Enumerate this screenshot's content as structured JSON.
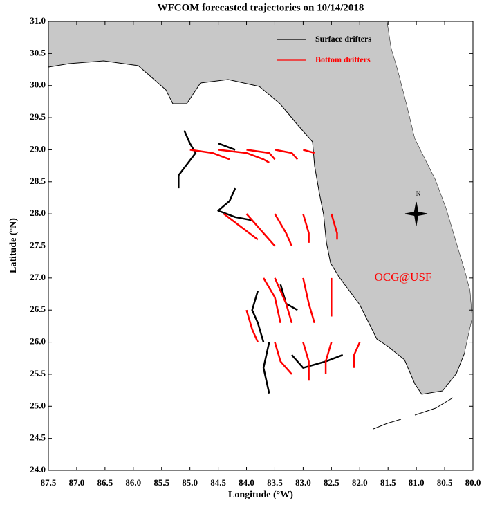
{
  "chart_data": {
    "type": "map",
    "title": "WFCOM forecasted trajectories on 10/14/2018",
    "x_label": "Longitude (°W)",
    "y_label": "Latitude (°N)",
    "annotation": "OCG@USF",
    "compass_label": "N",
    "xlim": [
      87.5,
      80.0
    ],
    "ylim": [
      24.0,
      31.0
    ],
    "xticks": [
      87.5,
      {
        "value": 87.0,
        "label": "87.0"
      },
      86.5,
      {
        "value": 86.0,
        "label": "86.0"
      },
      85.5,
      {
        "value": 85.0,
        "label": "85.0"
      },
      84.5,
      {
        "value": 84.0,
        "label": "84.0"
      },
      83.5,
      {
        "value": 83.0,
        "label": "83.0"
      },
      82.5,
      {
        "value": 82.0,
        "label": "82.0"
      },
      81.5,
      {
        "value": 81.0,
        "label": "81.0"
      },
      80.5,
      {
        "value": 80.0,
        "label": "80.0"
      }
    ],
    "yticks": [
      {
        "value": 24.0,
        "label": "24.0"
      },
      24.5,
      {
        "value": 25.0,
        "label": "25.0"
      },
      25.5,
      {
        "value": 26.0,
        "label": "26.0"
      },
      26.5,
      {
        "value": 27.0,
        "label": "27.0"
      },
      27.5,
      {
        "value": 28.0,
        "label": "28.0"
      },
      28.5,
      {
        "value": 29.0,
        "label": "29.0"
      },
      29.5,
      {
        "value": 30.0,
        "label": "30.0"
      },
      30.5,
      {
        "value": 31.0,
        "label": "31.0"
      }
    ],
    "series": [
      {
        "name": "Surface drifters",
        "color": "#000000",
        "x": [
          85.1,
          85.0,
          84.9,
          85.2,
          85.2,
          null,
          84.2,
          84.3,
          84.5,
          84.2,
          83.9,
          null,
          83.8,
          83.9,
          83.8,
          83.7,
          null,
          83.6,
          83.7,
          83.6,
          null,
          83.2,
          83.0,
          82.6,
          82.3,
          null,
          83.4,
          83.3,
          83.1,
          null,
          84.5,
          84.2
        ],
        "y": [
          29.3,
          29.1,
          28.95,
          28.6,
          28.4,
          null,
          28.4,
          28.2,
          28.05,
          27.95,
          27.9,
          null,
          26.8,
          26.5,
          26.3,
          26.0,
          null,
          26.0,
          25.6,
          25.2,
          null,
          25.8,
          25.6,
          25.7,
          25.8,
          null,
          26.9,
          26.6,
          26.5,
          null,
          29.1,
          29.0
        ]
      },
      {
        "name": "Bottom drifters",
        "color": "#ff0000",
        "x": [
          85.0,
          84.6,
          84.3,
          null,
          84.5,
          84.0,
          83.7,
          83.6,
          null,
          84.0,
          83.6,
          83.5,
          null,
          83.5,
          83.2,
          83.1,
          null,
          83.0,
          82.8,
          null,
          84.4,
          84.1,
          83.8,
          null,
          84.0,
          83.7,
          83.5,
          null,
          83.5,
          83.3,
          83.2,
          null,
          83.0,
          82.9,
          82.9,
          null,
          82.5,
          82.4,
          82.4,
          null,
          83.7,
          83.5,
          83.4,
          null,
          83.5,
          83.3,
          83.2,
          null,
          83.0,
          82.9,
          82.8,
          null,
          82.5,
          82.5,
          82.5,
          null,
          84.0,
          83.9,
          83.8,
          null,
          83.5,
          83.4,
          83.2,
          null,
          83.0,
          82.9,
          82.9,
          null,
          82.5,
          82.6,
          82.6,
          null,
          82.0,
          82.1,
          82.1
        ],
        "y": [
          29.0,
          28.95,
          28.85,
          null,
          29.0,
          28.95,
          28.85,
          28.8,
          null,
          29.0,
          28.95,
          28.85,
          null,
          29.0,
          28.95,
          28.85,
          null,
          29.0,
          28.95,
          null,
          28.0,
          27.8,
          27.6,
          null,
          28.0,
          27.7,
          27.5,
          null,
          28.0,
          27.7,
          27.5,
          null,
          28.0,
          27.7,
          27.55,
          null,
          28.0,
          27.7,
          27.6,
          null,
          27.0,
          26.7,
          26.3,
          null,
          27.0,
          26.6,
          26.3,
          null,
          27.0,
          26.6,
          26.3,
          null,
          27.0,
          26.7,
          26.4,
          null,
          26.5,
          26.2,
          26.0,
          null,
          26.0,
          25.7,
          25.5,
          null,
          26.0,
          25.7,
          25.4,
          null,
          26.0,
          25.7,
          25.5,
          null,
          26.0,
          25.8,
          25.6
        ]
      }
    ]
  }
}
